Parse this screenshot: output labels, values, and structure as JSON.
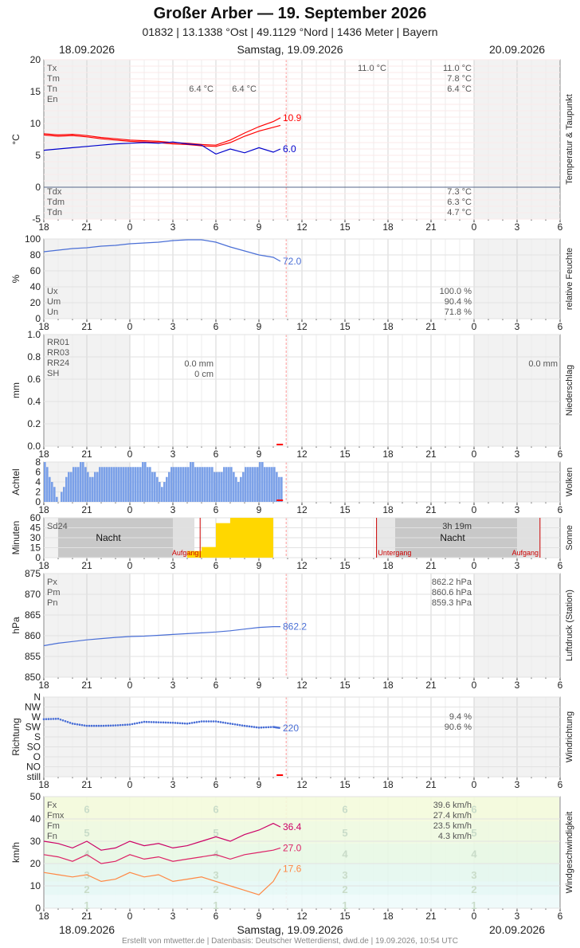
{
  "header": {
    "title": "Großer Arber  —  19. September 2026",
    "subtitle": "01832  |  13.1338 °Ost  |  49.1129 °Nord  |  1436 Meter  |  Bayern"
  },
  "day_labels": {
    "left": "18.09.2026",
    "center": "Samstag, 19.09.2026",
    "right": "20.09.2026"
  },
  "footer": "Erstellt von mtwetter.de | Datenbasis: Deutscher Wetterdienst, dwd.de | 19.09.2026, 10:54 UTC",
  "x_ticks": [
    "18",
    "21",
    "0",
    "3",
    "6",
    "9",
    "12",
    "15",
    "18",
    "21",
    "0",
    "3",
    "6"
  ],
  "colors": {
    "red": "#ff0000",
    "blue": "#0000cc",
    "humidity": "#4a6fd6",
    "cloud": "#7aa0e8",
    "sun": "#ffd700",
    "wind_gust": "#cc0066",
    "wind_mean": "#dd2266",
    "wind_min": "#ff8844",
    "now_line": "#ff9999"
  },
  "chart_data": [
    {
      "id": "temp",
      "type": "line",
      "side_label": "Temperatur & Taupunkt",
      "ylabel": "°C",
      "ylim": [
        -5,
        20
      ],
      "yticks": [
        -5,
        0,
        5,
        10,
        15,
        20
      ],
      "legend_top": [
        "Tx",
        "Tm",
        "Tn",
        "En"
      ],
      "legend_bottom": [
        "Tdx",
        "Tdm",
        "Tdn"
      ],
      "stats_top": {
        "day_tn": [
          "6.4 °C",
          "6.4 °C"
        ],
        "next_tx": "11.0 °C",
        "right": [
          "11.0 °C",
          "7.8 °C",
          "6.4 °C"
        ]
      },
      "stats_bottom": [
        "7.3 °C",
        "6.3 °C",
        "4.7 °C"
      ],
      "series": [
        {
          "name": "T",
          "color": "#ff0000",
          "end_label": "10.9",
          "x": [
            -6,
            -5,
            -4,
            -3,
            -2,
            -1,
            0,
            1,
            2,
            3,
            4,
            5,
            6,
            7,
            8,
            9,
            10,
            10.5
          ],
          "values": [
            8.4,
            8.2,
            8.3,
            8.1,
            7.8,
            7.6,
            7.4,
            7.3,
            7.2,
            7.0,
            6.9,
            6.7,
            6.6,
            7.4,
            8.5,
            9.5,
            10.3,
            10.9
          ]
        },
        {
          "name": "T2",
          "color": "#ff0000",
          "x": [
            -6,
            -5,
            -4,
            -3,
            -2,
            -1,
            0,
            1,
            2,
            3,
            4,
            5,
            6,
            7,
            8,
            9,
            10,
            10.5
          ],
          "values": [
            8.2,
            8.0,
            8.1,
            7.9,
            7.6,
            7.4,
            7.2,
            7.1,
            7.0,
            6.8,
            6.7,
            6.5,
            6.4,
            7.0,
            8.0,
            8.8,
            9.4,
            9.7
          ]
        },
        {
          "name": "Td",
          "color": "#0000cc",
          "end_label": "6.0",
          "x": [
            -6,
            -5,
            -4,
            -3,
            -2,
            -1,
            0,
            1,
            2,
            3,
            4,
            5,
            6,
            7,
            8,
            9,
            10,
            10.5
          ],
          "values": [
            5.8,
            6.0,
            6.2,
            6.4,
            6.6,
            6.8,
            6.9,
            7.0,
            6.9,
            7.1,
            6.8,
            6.6,
            5.2,
            6.0,
            5.4,
            6.2,
            5.5,
            6.0
          ]
        }
      ]
    },
    {
      "id": "humidity",
      "type": "line",
      "side_label": "relative Feuchte",
      "ylabel": "%",
      "ylim": [
        0,
        100
      ],
      "yticks": [
        0,
        20,
        40,
        60,
        80,
        100
      ],
      "legend": [
        "Ux",
        "Um",
        "Un"
      ],
      "stats": [
        "100.0 %",
        "90.4 %",
        "71.8 %"
      ],
      "series": [
        {
          "name": "U",
          "color": "#4a6fd6",
          "end_label": "72.0",
          "x": [
            -6,
            -5,
            -4,
            -3,
            -2,
            -1,
            0,
            1,
            2,
            3,
            4,
            5,
            6,
            7,
            8,
            9,
            10,
            10.5
          ],
          "values": [
            84,
            86,
            88,
            89,
            91,
            92,
            94,
            95,
            96,
            98,
            99,
            99,
            96,
            90,
            85,
            80,
            77,
            72
          ]
        }
      ]
    },
    {
      "id": "precip",
      "type": "bar",
      "side_label": "Niederschlag",
      "ylabel": "mm",
      "ylim": [
        0,
        1
      ],
      "yticks": [
        "0.0",
        "0.2",
        "0.4",
        "0.6",
        "0.8",
        "1.0"
      ],
      "legend": [
        "RR01",
        "RR03",
        "RR24",
        "SH"
      ],
      "stats": {
        "rr24": "0.0 mm",
        "sh": "0 cm",
        "right": "0.0 mm"
      },
      "values": []
    },
    {
      "id": "clouds",
      "type": "bar",
      "side_label": "Wolken",
      "ylabel": "Achtel",
      "ylim": [
        0,
        8
      ],
      "yticks": [
        0,
        2,
        4,
        6,
        8
      ],
      "x_start": -6,
      "x_step": 0.1667,
      "values": [
        8,
        7,
        5,
        4,
        3,
        1,
        0,
        2,
        3,
        5,
        6,
        6,
        7,
        7,
        7,
        8,
        8,
        7,
        6,
        5,
        5,
        6,
        6,
        7,
        7,
        7,
        7,
        7,
        7,
        7,
        7,
        7,
        7,
        7,
        7,
        7,
        7,
        7,
        7,
        7,
        7,
        8,
        8,
        7,
        7,
        6,
        6,
        5,
        4,
        3,
        4,
        5,
        6,
        7,
        7,
        7,
        7,
        7,
        7,
        7,
        7,
        8,
        8,
        7,
        7,
        7,
        7,
        7,
        7,
        7,
        7,
        6,
        6,
        6,
        6,
        7,
        7,
        7,
        7,
        6,
        5,
        4,
        5,
        6,
        7,
        7,
        7,
        7,
        7,
        7,
        8,
        8,
        7,
        7,
        7,
        7,
        7,
        6,
        5,
        5
      ]
    },
    {
      "id": "sun",
      "type": "bar",
      "side_label": "Sonne",
      "ylabel": "Minuten",
      "ylim": [
        0,
        60
      ],
      "yticks": [
        0,
        15,
        30,
        45,
        60
      ],
      "legend": [
        "Sd24"
      ],
      "right_total": "3h 19m",
      "night_label": "Nacht",
      "sunrise_label": "Aufgang",
      "sunset_label": "Untergang",
      "x": [
        4.5,
        5.5,
        6.5,
        7.5,
        8.5,
        9.5
      ],
      "values": [
        10,
        16,
        52,
        60,
        60,
        60
      ]
    },
    {
      "id": "pressure",
      "type": "line",
      "side_label": "Luftdruck (Station)",
      "ylabel": "hPa",
      "ylim": [
        850,
        875
      ],
      "yticks": [
        850,
        855,
        860,
        865,
        870,
        875
      ],
      "legend": [
        "Px",
        "Pm",
        "Pn"
      ],
      "stats": [
        "862.2 hPa",
        "860.6 hPa",
        "859.3 hPa"
      ],
      "series": [
        {
          "name": "P",
          "color": "#4a6fd6",
          "end_label": "862.2",
          "x": [
            -6,
            -5,
            -4,
            -3,
            -2,
            -1,
            0,
            1,
            2,
            3,
            4,
            5,
            6,
            7,
            8,
            9,
            10,
            10.5
          ],
          "values": [
            857.6,
            858.2,
            858.6,
            859.0,
            859.3,
            859.6,
            859.8,
            859.9,
            860.1,
            860.3,
            860.5,
            860.7,
            860.9,
            861.2,
            861.6,
            862.0,
            862.2,
            862.2
          ]
        }
      ]
    },
    {
      "id": "wind_dir",
      "type": "scatter",
      "side_label": "Windrichtung",
      "ylabel": "Richtung",
      "yticks": [
        "N",
        "NW",
        "W",
        "SW",
        "S",
        "SO",
        "O",
        "NO",
        "still"
      ],
      "stats": [
        "9.4 %",
        "90.6 %"
      ],
      "series": [
        {
          "name": "dir",
          "color": "#4a6fd6",
          "end_label": "220",
          "x": [
            -6,
            -5,
            -4,
            -3,
            -2,
            -1,
            0,
            1,
            2,
            3,
            4,
            5,
            6,
            7,
            8,
            9,
            10,
            10.5
          ],
          "values": [
            260,
            262,
            240,
            230,
            230,
            232,
            236,
            248,
            246,
            244,
            240,
            250,
            250,
            240,
            230,
            222,
            225,
            220
          ]
        }
      ]
    },
    {
      "id": "wind",
      "type": "line",
      "side_label": "Windgeschwindigkeit",
      "ylabel": "km/h",
      "ylim": [
        0,
        50
      ],
      "yticks": [
        0,
        10,
        20,
        30,
        40,
        50
      ],
      "legend": [
        "Fx",
        "Fmx",
        "Fm",
        "Fn"
      ],
      "stats": [
        "39.6 km/h",
        "27.4 km/h",
        "23.5 km/h",
        "4.3 km/h"
      ],
      "bft_labels": [
        "1",
        "2",
        "3",
        "4",
        "5",
        "6"
      ],
      "series": [
        {
          "name": "Fx",
          "color": "#cc0066",
          "end_label": "36.4",
          "x": [
            -6,
            -5,
            -4,
            -3,
            -2,
            -1,
            0,
            1,
            2,
            3,
            4,
            5,
            6,
            7,
            8,
            9,
            10,
            10.5
          ],
          "values": [
            30,
            29,
            27,
            30,
            26,
            27,
            30,
            28,
            29,
            27,
            28,
            30,
            32,
            30,
            33,
            35,
            38,
            36.4
          ]
        },
        {
          "name": "Fm",
          "color": "#dd2266",
          "end_label": "27.0",
          "x": [
            -6,
            -5,
            -4,
            -3,
            -2,
            -1,
            0,
            1,
            2,
            3,
            4,
            5,
            6,
            7,
            8,
            9,
            10,
            10.5
          ],
          "values": [
            24,
            23,
            21,
            24,
            20,
            21,
            24,
            22,
            23,
            21,
            22,
            23,
            24,
            22,
            24,
            25,
            26,
            27.0
          ]
        },
        {
          "name": "Fn",
          "color": "#ff8844",
          "end_label": "17.6",
          "x": [
            -6,
            -5,
            -4,
            -3,
            -2,
            -1,
            0,
            1,
            2,
            3,
            4,
            5,
            6,
            7,
            8,
            9,
            10,
            10.5
          ],
          "values": [
            16,
            15,
            14,
            15,
            12,
            13,
            16,
            14,
            15,
            12,
            13,
            14,
            12,
            10,
            8,
            6,
            12,
            17.6
          ]
        }
      ]
    }
  ]
}
